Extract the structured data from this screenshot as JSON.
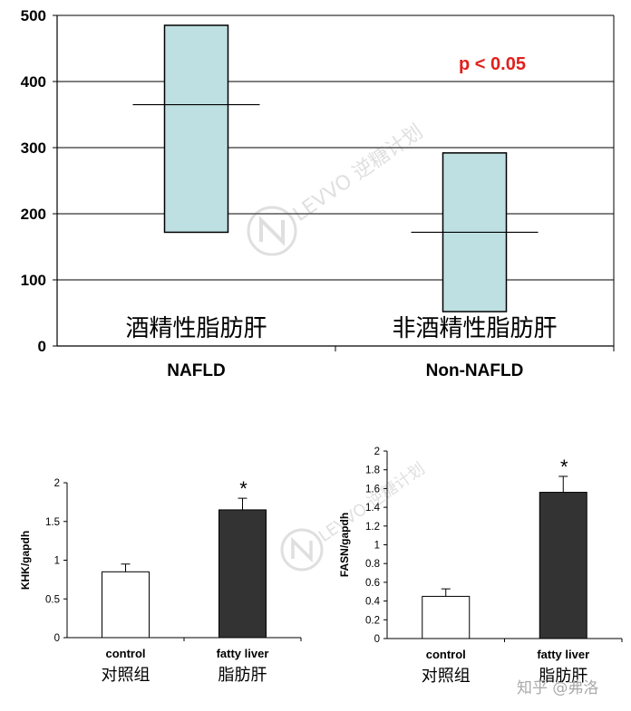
{
  "chart_data": [
    {
      "type": "box",
      "ylim": [
        0,
        500
      ],
      "yticks": [
        "0",
        "100",
        "200",
        "300",
        "400",
        "500"
      ],
      "grid": true,
      "annotation": "p < 0.05",
      "annotation_color": "#e0201b",
      "box_color": "#bfe0e2",
      "categories": [
        "NAFLD",
        "Non-NAFLD"
      ],
      "category_labels_cn": [
        "酒精性脂肪肝",
        "非酒精性脂肪肝"
      ],
      "boxes": [
        {
          "low": 172,
          "high": 485,
          "median": 365
        },
        {
          "low": 52,
          "high": 292,
          "median": 172
        }
      ]
    },
    {
      "type": "bar",
      "ylabel": "KHK/gapdh",
      "ylim": [
        0,
        2
      ],
      "yticks": [
        "0",
        "0.5",
        "1",
        "1.5",
        "2"
      ],
      "categories": [
        "control",
        "fatty liver"
      ],
      "categories_cn": [
        "对照组",
        "脂肪肝"
      ],
      "values": [
        0.85,
        1.65
      ],
      "errors": [
        0.1,
        0.15
      ],
      "significance": [
        "",
        "*"
      ],
      "colors": [
        "#ffffff",
        "#333333"
      ]
    },
    {
      "type": "bar",
      "ylabel": "FASN/gapdh",
      "ylim": [
        0,
        2
      ],
      "yticks": [
        "0",
        "0.2",
        "0.4",
        "0.6",
        "0.8",
        "1",
        "1.2",
        "1.4",
        "1.6",
        "1.8",
        "2"
      ],
      "categories": [
        "control",
        "fatty liver"
      ],
      "categories_cn": [
        "对照组",
        "脂肪肝"
      ],
      "values": [
        0.45,
        1.56
      ],
      "errors": [
        0.08,
        0.17
      ],
      "significance": [
        "",
        "*"
      ],
      "colors": [
        "#ffffff",
        "#333333"
      ]
    }
  ],
  "watermark": {
    "text": "LEVVO 逆糖计划"
  },
  "credit": "知乎 @弗洛"
}
